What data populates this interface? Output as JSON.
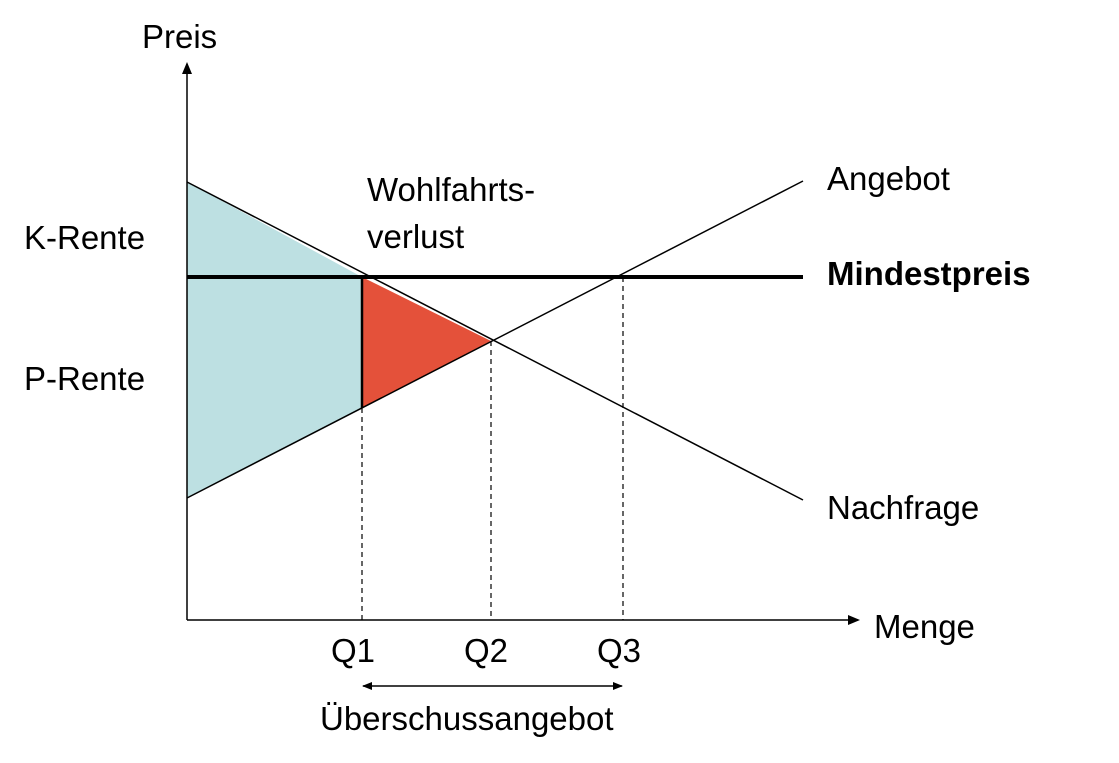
{
  "colors": {
    "consumer_producer_surplus": "#bde0e2",
    "deadweight_loss": "#e4513a",
    "lines": "#000000"
  },
  "axes": {
    "y_label": "Preis",
    "x_label": "Menge"
  },
  "curves": {
    "supply_label": "Angebot",
    "demand_label": "Nachfrage",
    "min_price_label": "Mindestpreis"
  },
  "areas": {
    "consumer_surplus_label": "K-Rente",
    "producer_surplus_label": "P-Rente",
    "welfare_loss_line1": "Wohlfahrts-",
    "welfare_loss_line2": "verlust"
  },
  "quantities": {
    "q1": "Q1",
    "q2": "Q2",
    "q3": "Q3"
  },
  "excess_supply_label": "Überschussangebot"
}
